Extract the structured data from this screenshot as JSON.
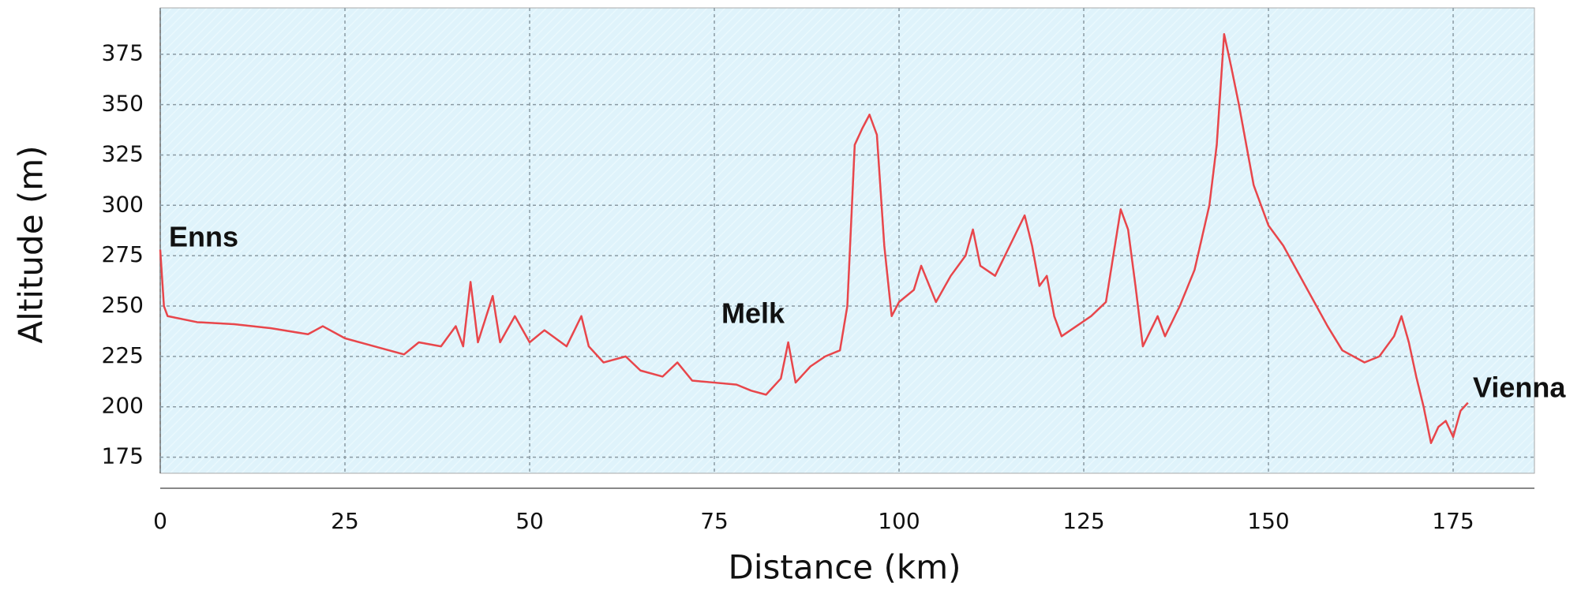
{
  "chart_data": {
    "type": "line",
    "xlabel": "Distance (km)",
    "ylabel": "Altitude (m)",
    "annotations": [
      "Enns",
      "Melk",
      "Vienna"
    ],
    "x": [
      0,
      0.5,
      1,
      5,
      10,
      15,
      20,
      22,
      25,
      28,
      30,
      33,
      35,
      38,
      40,
      41,
      42,
      43,
      45,
      46,
      48,
      50,
      52,
      55,
      57,
      58,
      60,
      63,
      65,
      68,
      70,
      72,
      75,
      78,
      80,
      82,
      84,
      85,
      86,
      88,
      90,
      92,
      93,
      94,
      95,
      96,
      97,
      98,
      99,
      100,
      102,
      103,
      105,
      107,
      109,
      110,
      111,
      113,
      115,
      117,
      118,
      119,
      120,
      121,
      122,
      124,
      126,
      128,
      130,
      131,
      132,
      133,
      135,
      136,
      138,
      140,
      142,
      143,
      144,
      145,
      146,
      148,
      150,
      152,
      155,
      158,
      160,
      163,
      165,
      167,
      168,
      169,
      170,
      171,
      172,
      173,
      174,
      175,
      176,
      177
    ],
    "series": [
      {
        "name": "Altitude",
        "color": "#e8464b",
        "values": [
          278,
          250,
          245,
          242,
          241,
          239,
          236,
          240,
          234,
          231,
          229,
          226,
          232,
          230,
          240,
          230,
          262,
          232,
          255,
          232,
          245,
          232,
          238,
          230,
          245,
          230,
          222,
          225,
          218,
          215,
          222,
          213,
          212,
          211,
          208,
          206,
          214,
          232,
          212,
          220,
          225,
          228,
          250,
          330,
          338,
          345,
          335,
          280,
          245,
          252,
          258,
          270,
          252,
          265,
          275,
          288,
          270,
          265,
          280,
          295,
          280,
          260,
          265,
          245,
          235,
          240,
          245,
          252,
          298,
          288,
          260,
          230,
          245,
          235,
          250,
          268,
          300,
          330,
          385,
          368,
          350,
          310,
          290,
          280,
          260,
          240,
          228,
          222,
          225,
          235,
          245,
          232,
          215,
          200,
          182,
          190,
          193,
          185,
          198,
          202
        ]
      }
    ],
    "xlim": [
      0,
      186
    ],
    "ylim": [
      167,
      398
    ],
    "xticks": [
      0,
      25,
      50,
      75,
      100,
      125,
      150,
      175
    ],
    "yticks": [
      175,
      200,
      225,
      250,
      275,
      300,
      325,
      350,
      375
    ],
    "grid": true
  }
}
